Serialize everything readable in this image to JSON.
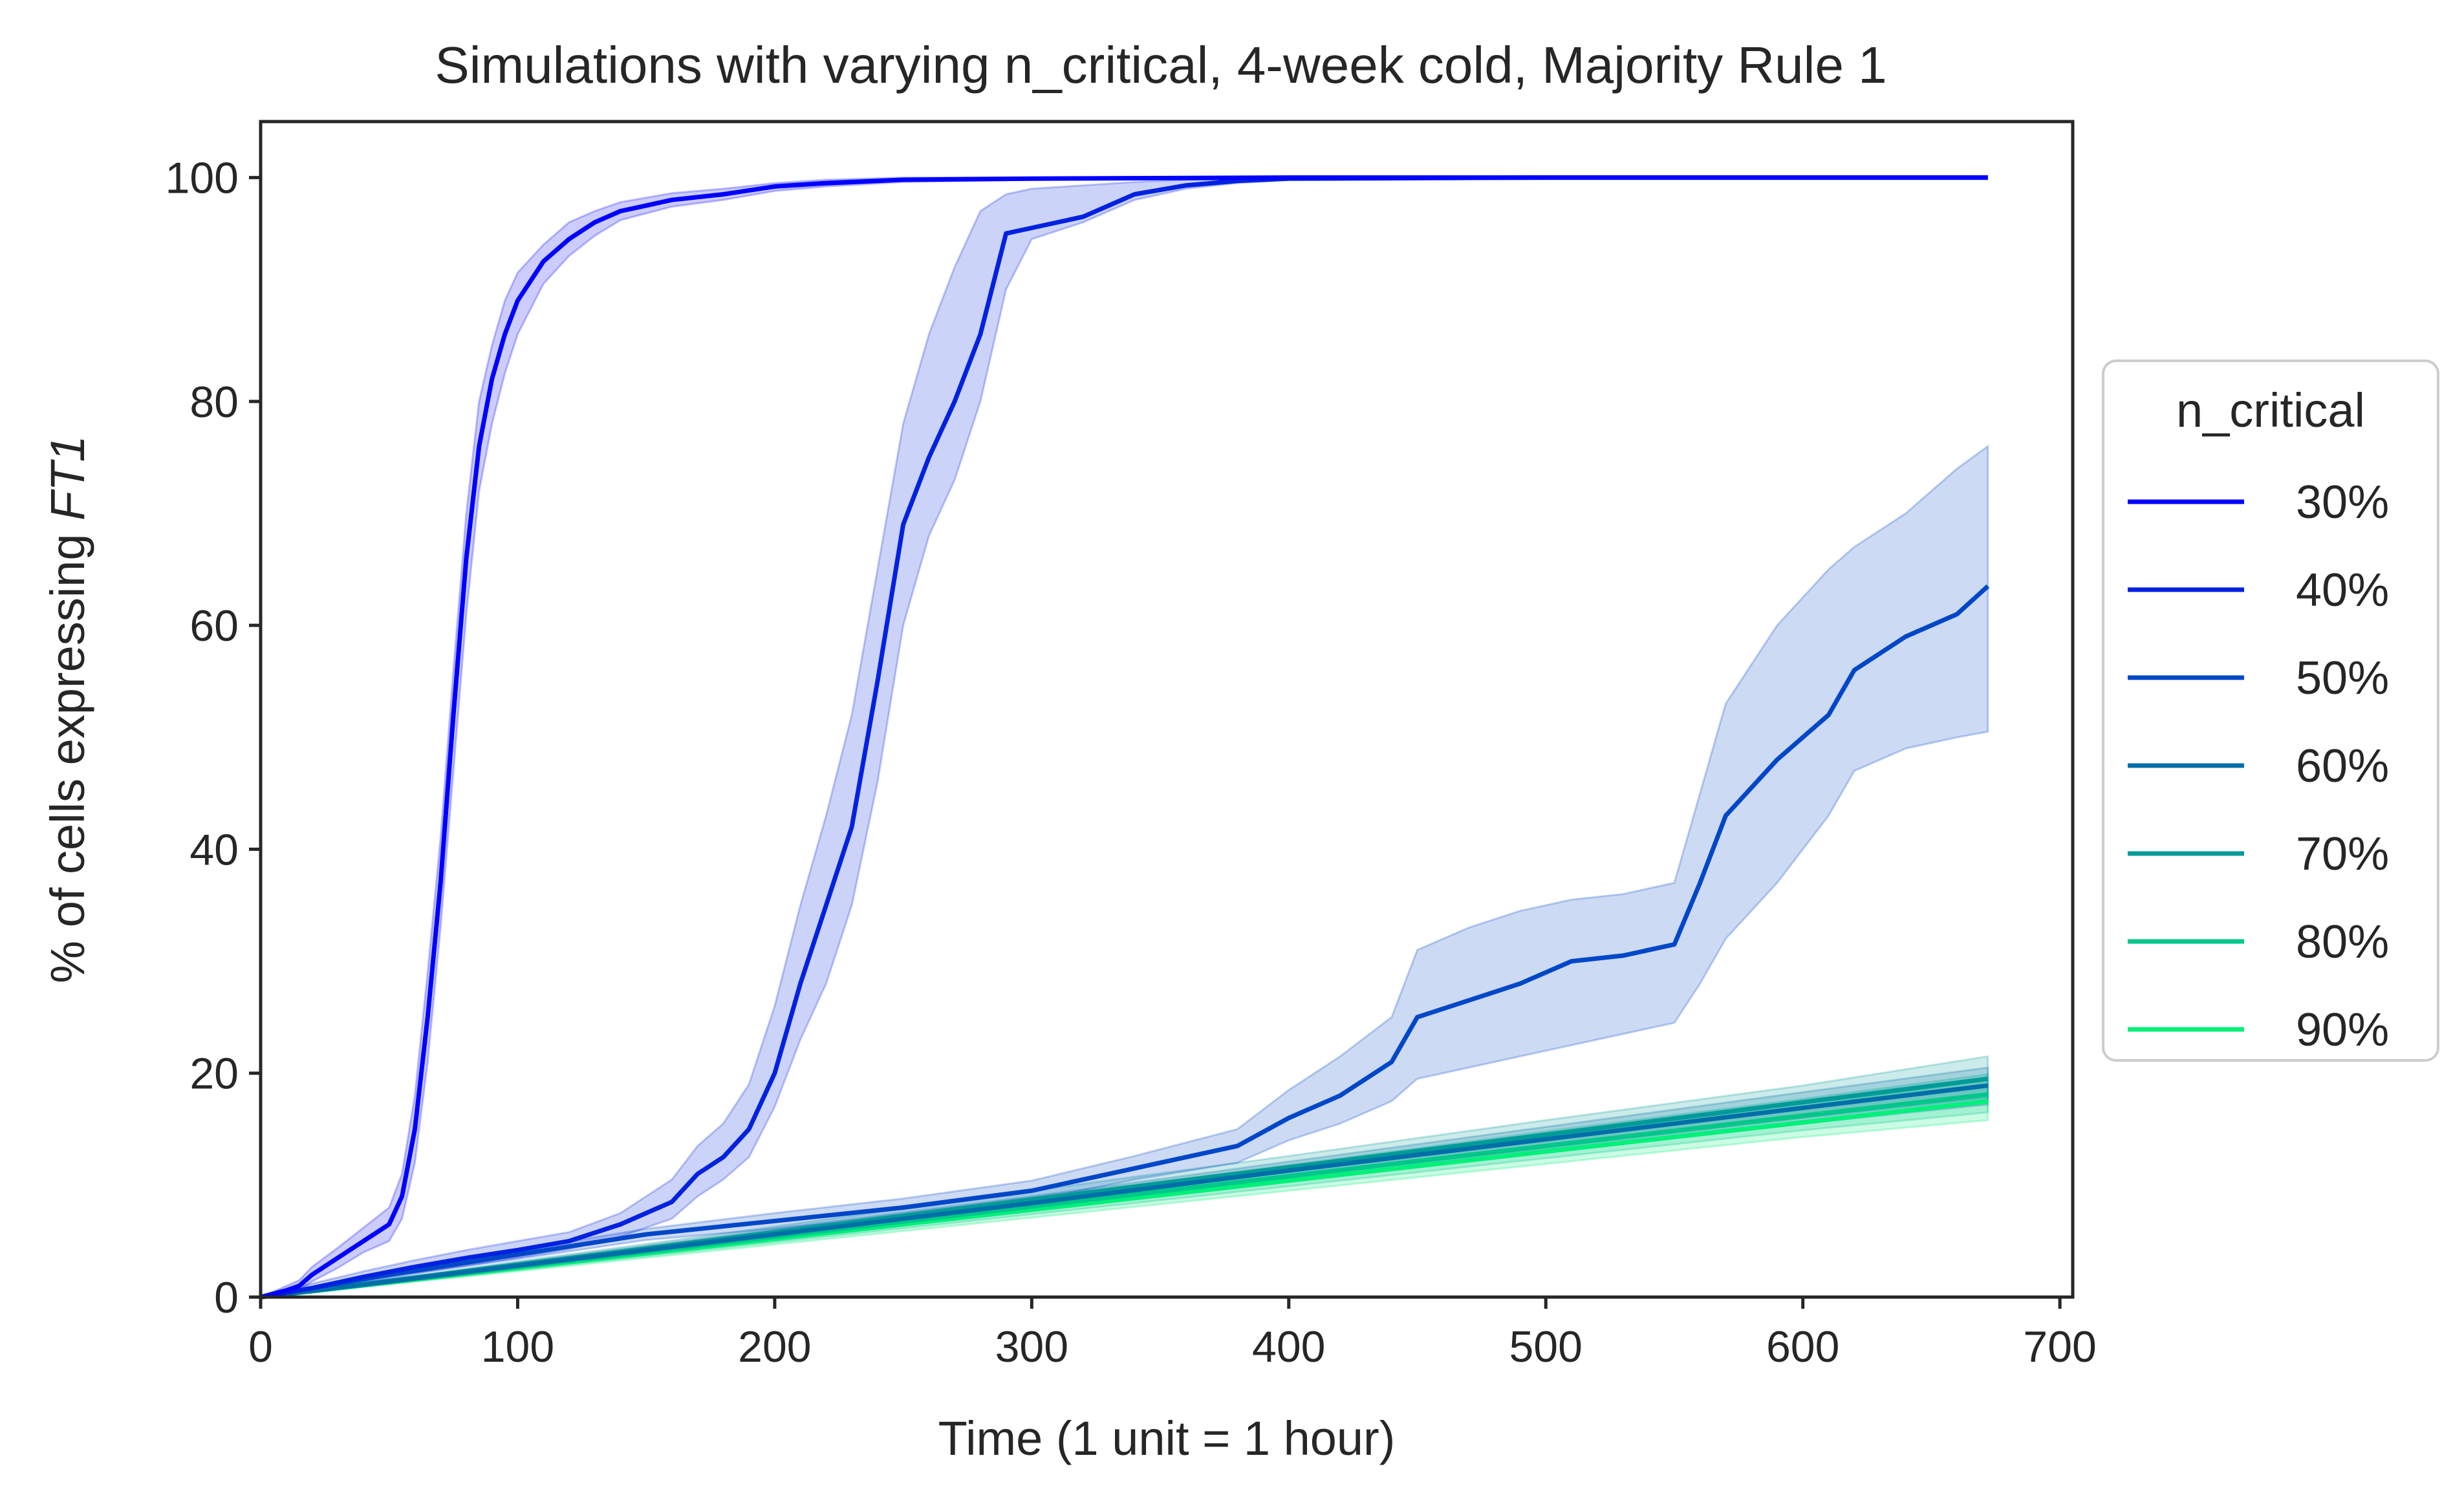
{
  "chart_data": {
    "type": "line",
    "title": "Simulations with varying n_critical, 4-week cold, Majority Rule 1",
    "xlabel": "Time (1 unit = 1 hour)",
    "ylabel_prefix": "% of cells expressing ",
    "ylabel_italic": "FT1",
    "xlim": [
      0,
      705
    ],
    "ylim": [
      0,
      105
    ],
    "xticks": [
      0,
      100,
      200,
      300,
      400,
      500,
      600,
      700
    ],
    "yticks": [
      0,
      20,
      40,
      60,
      80,
      100
    ],
    "grid": false,
    "legend": {
      "title": "n_critical",
      "placement": "center-right, outside plot"
    },
    "series": [
      {
        "name": "30%",
        "color": "#0000ff",
        "x": [
          0,
          10,
          15,
          20,
          30,
          40,
          50,
          55,
          60,
          65,
          70,
          75,
          80,
          85,
          90,
          95,
          100,
          110,
          120,
          130,
          140,
          150,
          160,
          180,
          200,
          220,
          250,
          300,
          400,
          500,
          600,
          672
        ],
        "y": [
          0,
          0.6,
          1,
          2,
          3.5,
          5,
          6.5,
          9,
          15,
          25,
          37,
          52,
          66,
          76,
          82,
          86,
          89,
          92.5,
          94.5,
          96,
          97,
          97.5,
          98,
          98.5,
          99.2,
          99.5,
          99.8,
          99.9,
          100,
          100,
          100,
          100
        ],
        "lower": [
          0,
          0.3,
          0.6,
          1.4,
          2.6,
          4,
          5,
          7,
          12,
          21,
          33,
          47,
          61,
          72,
          78,
          82.5,
          86,
          90.5,
          93,
          94.8,
          96.2,
          96.8,
          97.4,
          98,
          98.8,
          99.2,
          99.6,
          99.8,
          99.9,
          100,
          100,
          100
        ],
        "upper": [
          0,
          1,
          1.5,
          2.7,
          4.4,
          6.2,
          8,
          11,
          18,
          29,
          41,
          56,
          70,
          80,
          85,
          89,
          91.5,
          94,
          96,
          97,
          97.8,
          98.2,
          98.6,
          99,
          99.5,
          99.8,
          100,
          100,
          100,
          100,
          100,
          100
        ]
      },
      {
        "name": "40%",
        "color": "#0022e0",
        "x": [
          0,
          20,
          40,
          60,
          80,
          100,
          120,
          140,
          160,
          170,
          180,
          190,
          200,
          210,
          220,
          230,
          240,
          250,
          260,
          270,
          280,
          290,
          300,
          320,
          340,
          360,
          380,
          400,
          500,
          600,
          672
        ],
        "y": [
          0,
          0.8,
          1.8,
          2.7,
          3.5,
          4.2,
          5,
          6.5,
          8.5,
          11,
          12.5,
          15,
          20,
          28,
          35,
          42,
          55,
          69,
          75,
          80,
          86,
          95,
          95.5,
          96.5,
          98.5,
          99.3,
          99.7,
          99.9,
          100,
          100,
          100
        ],
        "lower": [
          0,
          0.5,
          1.3,
          2.1,
          2.8,
          3.5,
          4.3,
          5.4,
          7,
          9,
          10.5,
          12.5,
          17,
          23,
          28,
          35,
          46,
          60,
          68,
          73,
          80,
          90,
          94.5,
          96,
          98,
          99,
          99.5,
          99.8,
          100,
          100,
          100
        ],
        "upper": [
          0,
          1.2,
          2.3,
          3.3,
          4.2,
          5,
          5.8,
          7.5,
          10.5,
          13.5,
          15.5,
          19,
          26,
          35,
          43,
          52,
          65,
          78,
          86,
          92,
          97,
          98.5,
          99,
          99.3,
          99.6,
          99.8,
          99.9,
          100,
          100,
          100,
          100
        ]
      },
      {
        "name": "50%",
        "color": "#0047c8",
        "x": [
          0,
          50,
          100,
          150,
          200,
          250,
          300,
          340,
          380,
          400,
          420,
          440,
          450,
          470,
          490,
          510,
          530,
          550,
          560,
          570,
          590,
          610,
          620,
          640,
          660,
          672
        ],
        "y": [
          0,
          2,
          3.8,
          5.6,
          6.8,
          8,
          9.5,
          11.5,
          13.5,
          16,
          18,
          21,
          25,
          26.5,
          28,
          30,
          30.5,
          31.5,
          37,
          43,
          48,
          52,
          56,
          59,
          61,
          63.5
        ],
        "lower": [
          0,
          1.8,
          3.4,
          5.1,
          6.1,
          7.2,
          8.6,
          10.5,
          12,
          14,
          15.5,
          17.5,
          19.5,
          20.5,
          21.5,
          22.5,
          23.5,
          24.5,
          28,
          32,
          37,
          43,
          47,
          49,
          50,
          50.5
        ],
        "upper": [
          0,
          2.3,
          4.2,
          6.1,
          7.5,
          8.8,
          10.4,
          12.6,
          15,
          18.5,
          21.5,
          25,
          31,
          33,
          34.5,
          35.5,
          36,
          37,
          45,
          53,
          60,
          65,
          67,
          70,
          74,
          76
        ]
      },
      {
        "name": "60%",
        "color": "#006fa8",
        "x": [
          0,
          100,
          200,
          300,
          400,
          500,
          600,
          672
        ],
        "y": [
          0,
          2.8,
          5.6,
          8.4,
          11.3,
          14.1,
          16.9,
          18.9
        ],
        "lower": [
          0,
          2.5,
          5.1,
          7.8,
          10.5,
          13,
          15.5,
          17.2
        ],
        "upper": [
          0,
          3.1,
          6.1,
          9,
          12.1,
          15.2,
          18.3,
          20.5
        ]
      },
      {
        "name": "70%",
        "color": "#009b98",
        "x": [
          0,
          100,
          200,
          300,
          400,
          500,
          600,
          672
        ],
        "y": [
          0,
          2.9,
          5.8,
          8.7,
          11.6,
          14.5,
          17.4,
          19.5
        ],
        "lower": [
          0,
          2.6,
          5.3,
          8,
          10.7,
          13.3,
          16,
          17.8
        ],
        "upper": [
          0,
          3.2,
          6.3,
          9.5,
          12.6,
          15.8,
          18.9,
          21.5
        ]
      },
      {
        "name": "80%",
        "color": "#00c78a",
        "x": [
          0,
          100,
          200,
          300,
          400,
          500,
          600,
          672
        ],
        "y": [
          0,
          2.7,
          5.4,
          8.1,
          10.8,
          13.5,
          16.2,
          18.1
        ],
        "lower": [
          0,
          2.4,
          4.9,
          7.4,
          9.9,
          12.4,
          14.9,
          16.5
        ],
        "upper": [
          0,
          3,
          5.9,
          8.9,
          11.8,
          14.8,
          17.7,
          19.9
        ]
      },
      {
        "name": "90%",
        "color": "#00f07a",
        "x": [
          0,
          100,
          200,
          300,
          400,
          500,
          600,
          672
        ],
        "y": [
          0,
          2.6,
          5.2,
          7.8,
          10.4,
          13,
          15.6,
          17.5
        ],
        "lower": [
          0,
          2.3,
          4.7,
          7.1,
          9.5,
          11.9,
          14.3,
          15.8
        ],
        "upper": [
          0,
          2.9,
          5.7,
          8.6,
          11.4,
          14.3,
          17.1,
          19.4
        ]
      }
    ]
  }
}
